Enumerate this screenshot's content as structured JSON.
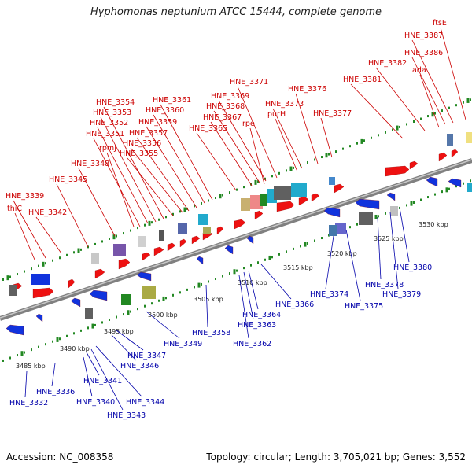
{
  "title": "Hyphomonas neptunium ATCC 15444, complete genome",
  "accession_text": "Accession: NC_008358",
  "topology_text": "Topology: circular; Length: 3,705,021 bp; Genes: 3,552",
  "colors": {
    "forward_label": "#cc0000",
    "reverse_label": "#0000aa",
    "forward_gene": "#ee1111",
    "reverse_gene": "#1133dd",
    "tick": "#228822",
    "backbone": "#808080"
  },
  "kbp_labels": [
    "3485 kbp",
    "3490 kbp",
    "3495 kbp",
    "3500 kbp",
    "3505 kbp",
    "3510 kbp",
    "3515 kbp",
    "3520 kbp",
    "3525 kbp",
    "3530 kbp"
  ],
  "forward_genes": [
    "thiC",
    "HNE_3339",
    "HNE_3342",
    "HNE_3345",
    "HNE_3348",
    "rpmJ",
    "HNE_3351",
    "HNE_3352",
    "HNE_3353",
    "HNE_3354",
    "HNE_3355",
    "HNE_3356",
    "HNE_3357",
    "HNE_3359",
    "HNE_3360",
    "HNE_3361",
    "HNE_3365",
    "HNE_3367",
    "HNE_3368",
    "HNE_3369",
    "HNE_3371",
    "rpe",
    "purH",
    "HNE_3373",
    "HNE_3376",
    "HNE_3377",
    "HNE_3381",
    "HNE_3382",
    "ada",
    "HNE_3386",
    "HNE_3387",
    "ftsE"
  ],
  "reverse_genes": [
    "HNE_3332",
    "HNE_3336",
    "HNE_3340",
    "HNE_3341",
    "HNE_3343",
    "HNE_3344",
    "HNE_3346",
    "HNE_3347",
    "HNE_3349",
    "HNE_3358",
    "HNE_3362",
    "HNE_3363",
    "HNE_3364",
    "HNE_3366",
    "HNE_3374",
    "HNE_3375",
    "HNE_3378",
    "HNE_3379",
    "HNE_3380"
  ]
}
